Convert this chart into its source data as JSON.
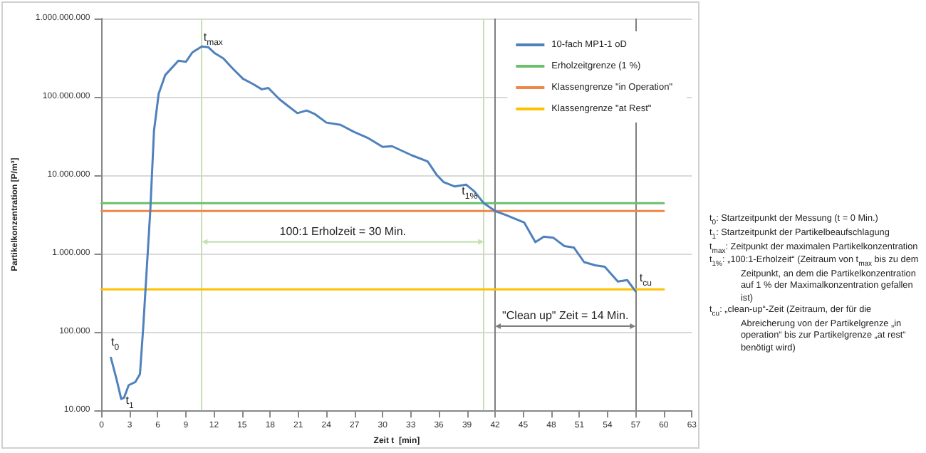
{
  "chart_data": {
    "type": "line",
    "xlabel": "Zeit t  [min]",
    "ylabel": "Partikelkonzentration [P/m³]",
    "xlim": [
      0,
      63
    ],
    "xticks": [
      0,
      3,
      6,
      9,
      12,
      15,
      18,
      21,
      24,
      27,
      30,
      33,
      36,
      39,
      42,
      45,
      48,
      51,
      54,
      57,
      60,
      63
    ],
    "ylim": [
      10000,
      1000000000
    ],
    "yticks": [
      {
        "value": 10000,
        "label": "10.000"
      },
      {
        "value": 100000,
        "label": "100.000"
      },
      {
        "value": 1000000,
        "label": "1.000.000"
      },
      {
        "value": 10000000,
        "label": "10.000.000"
      },
      {
        "value": 100000000,
        "label": "100.000.000"
      },
      {
        "value": 1000000000,
        "label": "1.000.000.000"
      }
    ],
    "log": "y",
    "grid": "y",
    "legend": "top right",
    "marker": "none",
    "line_style": "solid",
    "series": [
      {
        "name": "10-fach MP1-1 oD",
        "color": "#4f81bd",
        "x": [
          1,
          1.6,
          2.1,
          2.4,
          2.9,
          3.6,
          4.1,
          4.45,
          5.2,
          5.6,
          6.1,
          6.8,
          8.2,
          9,
          9.7,
          10.7,
          11.4,
          12.1,
          13,
          14,
          15.1,
          16.2,
          17.1,
          17.8,
          19,
          20,
          20.9,
          21.9,
          22.8,
          24,
          25.5,
          26.9,
          28.4,
          30,
          31,
          33.1,
          34.8,
          35.8,
          36.5,
          37.7,
          38.9,
          39.8,
          40.8,
          42,
          43.2,
          44.4,
          45.1,
          46.3,
          47.2,
          48.2,
          49.4,
          50.4,
          51.5,
          52.7,
          53.7,
          55.1,
          56.1,
          57
        ],
        "values": [
          47000,
          25000,
          14000,
          14500,
          21000,
          23000,
          29000,
          115000,
          3500000,
          37000000,
          110000000,
          190000000,
          290000000,
          280000000,
          370000000,
          440000000,
          430000000,
          360000000,
          310000000,
          230000000,
          170000000,
          145000000,
          125000000,
          130000000,
          93000000,
          75000000,
          62000000,
          67000000,
          60000000,
          47000000,
          44000000,
          36000000,
          30000000,
          23000000,
          23500000,
          18000000,
          15000000,
          10000000,
          8200000,
          7200000,
          7600000,
          6200000,
          4400000,
          3500000,
          3100000,
          2700000,
          2500000,
          1400000,
          1650000,
          1600000,
          1250000,
          1200000,
          780000,
          710000,
          680000,
          440000,
          460000,
          330000
        ]
      },
      {
        "name": "Erholzeitgrenze (1 %)",
        "color": "#6cbf6c",
        "x": [
          0,
          60
        ],
        "values": [
          4400000,
          4400000
        ]
      },
      {
        "name": "Klassengrenze \"in Operation\"",
        "color": "#f0874a",
        "x": [
          0,
          60
        ],
        "values": [
          3500000,
          3500000
        ]
      },
      {
        "name": "Klassengrenze \"at Rest\"",
        "color": "#ffc000",
        "x": [
          0,
          60
        ],
        "values": [
          350000,
          350000
        ]
      }
    ],
    "ref_lines": [
      {
        "axis": "x",
        "value": 10.7,
        "color": "#c6e0b4"
      },
      {
        "axis": "x",
        "value": 40.8,
        "color": "#c6e0b4"
      },
      {
        "axis": "x",
        "value": 42,
        "color": "#7f7f7f"
      },
      {
        "axis": "x",
        "value": 57,
        "color": "#7f7f7f"
      }
    ],
    "annotations": [
      {
        "text": "t$_{0}$",
        "x": 1,
        "y": 47000
      },
      {
        "text": "t$_{1}$",
        "x": 2.1,
        "y": 14000
      },
      {
        "text": "t$_{max}$",
        "x": 10.7,
        "y": 440000000
      },
      {
        "text": "t$_{1%}$",
        "x": 40.8,
        "y": 4400000
      },
      {
        "text": "t$_{cu}$",
        "x": 57,
        "y": 330000
      },
      "100:1 Erholzeit = 30 Min.",
      "\"Clean up\" Zeit = 14 Min.",
      "t$_{0}$: Startzeitpunkt der Messung (t = 0 Min.)",
      "t$_{1}$: Startzeitpunkt der Partikelbeaufschlagung",
      "t$_{max}$: Zeitpunkt der maximalen Partikelkonzentration",
      "t$_{1%}$: „100:1-Erholzeit“ (Zeitraum von t$_{max}$ bis zu dem Zeitpunkt, an dem die Partikelkonzentration auf 1 % der Maximalkonzentration gefallen ist)",
      "t$_{cu}$: „clean-up“-Zeit (Zeitraum, der für die Abreicherung von der Partikelgrenze „in operation“ bis zur Partikelgrenze „at rest“ benötigt wird)"
    ]
  }
}
